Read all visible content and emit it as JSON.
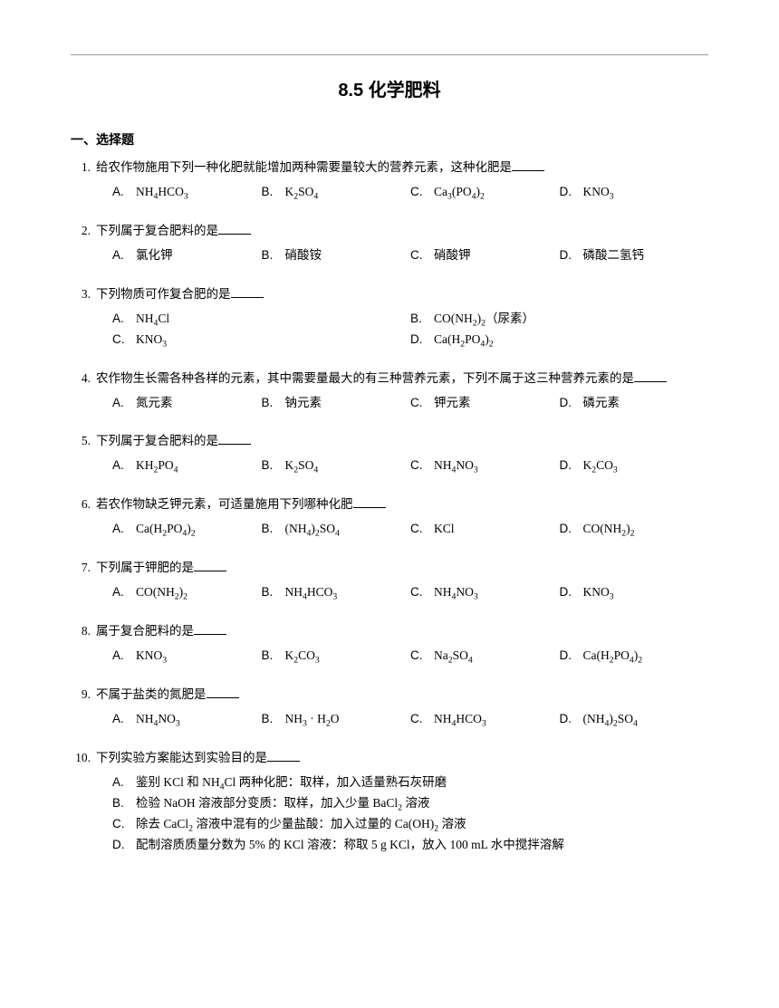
{
  "title": "8.5 化学肥料",
  "section_header": "一、选择题",
  "text_color": "#000000",
  "bg_color": "#ffffff",
  "questions": [
    {
      "num": "1.",
      "stem": "给农作物施用下列一种化肥就能增加两种需要量较大的营养元素，这种化肥是",
      "layout": "opt-4",
      "options": [
        {
          "label": "A.",
          "html": "NH<sub>4</sub>HCO<sub>3</sub>"
        },
        {
          "label": "B.",
          "html": "K<sub>2</sub>SO<sub>4</sub>"
        },
        {
          "label": "C.",
          "html": "Ca<sub>3</sub>(PO<sub>4</sub>)<sub>2</sub>"
        },
        {
          "label": "D.",
          "html": "KNO<sub>3</sub>"
        }
      ]
    },
    {
      "num": "2.",
      "stem": "下列属于复合肥料的是",
      "layout": "opt-4",
      "options": [
        {
          "label": "A.",
          "html": "氯化钾"
        },
        {
          "label": "B.",
          "html": "硝酸铵"
        },
        {
          "label": "C.",
          "html": "硝酸钾"
        },
        {
          "label": "D.",
          "html": "磷酸二氢钙"
        }
      ]
    },
    {
      "num": "3.",
      "stem": "下列物质可作复合肥的是",
      "layout": "opt-2",
      "options": [
        {
          "label": "A.",
          "html": "NH<sub>4</sub>Cl"
        },
        {
          "label": "B.",
          "html": "CO(NH<sub>2</sub>)<sub>2</sub>（尿素）"
        },
        {
          "label": "C.",
          "html": "KNO<sub>3</sub>"
        },
        {
          "label": "D.",
          "html": "Ca(H<sub>2</sub>PO<sub>4</sub>)<sub>2</sub>"
        }
      ]
    },
    {
      "num": "4.",
      "stem": "农作物生长需各种各样的元素，其中需要量最大的有三种营养元素，下列不属于这三种营养元素的是",
      "layout": "opt-4",
      "options": [
        {
          "label": "A.",
          "html": "氮元素"
        },
        {
          "label": "B.",
          "html": "钠元素"
        },
        {
          "label": "C.",
          "html": "钾元素"
        },
        {
          "label": "D.",
          "html": "磷元素"
        }
      ]
    },
    {
      "num": "5.",
      "stem": "下列属于复合肥料的是",
      "layout": "opt-4",
      "options": [
        {
          "label": "A.",
          "html": "KH<sub>2</sub>PO<sub>4</sub>"
        },
        {
          "label": "B.",
          "html": "K<sub>2</sub>SO<sub>4</sub>"
        },
        {
          "label": "C.",
          "html": "NH<sub>4</sub>NO<sub>3</sub>"
        },
        {
          "label": "D.",
          "html": "K<sub>2</sub>CO<sub>3</sub>"
        }
      ]
    },
    {
      "num": "6.",
      "stem": "若农作物缺乏钾元素，可适量施用下列哪种化肥",
      "layout": "opt-4",
      "options": [
        {
          "label": "A.",
          "html": "Ca(H<sub>2</sub>PO<sub>4</sub>)<sub>2</sub>"
        },
        {
          "label": "B.",
          "html": "(NH<sub>4</sub>)<sub>2</sub>SO<sub>4</sub>"
        },
        {
          "label": "C.",
          "html": "KCl"
        },
        {
          "label": "D.",
          "html": "CO(NH<sub>2</sub>)<sub>2</sub>"
        }
      ]
    },
    {
      "num": "7.",
      "stem": "下列属于钾肥的是",
      "layout": "opt-4",
      "options": [
        {
          "label": "A.",
          "html": "CO(NH<sub>2</sub>)<sub>2</sub>"
        },
        {
          "label": "B.",
          "html": "NH<sub>4</sub>HCO<sub>3</sub>"
        },
        {
          "label": "C.",
          "html": "NH<sub>4</sub>NO<sub>3</sub>"
        },
        {
          "label": "D.",
          "html": "KNO<sub>3</sub>"
        }
      ]
    },
    {
      "num": "8.",
      "stem": "属于复合肥料的是",
      "layout": "opt-4",
      "options": [
        {
          "label": "A.",
          "html": "KNO<sub>3</sub>"
        },
        {
          "label": "B.",
          "html": "K<sub>2</sub>CO<sub>3</sub>"
        },
        {
          "label": "C.",
          "html": "Na<sub>2</sub>SO<sub>4</sub>"
        },
        {
          "label": "D.",
          "html": "Ca(H<sub>2</sub>PO<sub>4</sub>)<sub>2</sub>"
        }
      ]
    },
    {
      "num": "9.",
      "stem": "不属于盐类的氮肥是",
      "layout": "opt-4",
      "options": [
        {
          "label": "A.",
          "html": "NH<sub>4</sub>NO<sub>3</sub>"
        },
        {
          "label": "B.",
          "html": "NH<sub>3</sub> · H<sub>2</sub>O"
        },
        {
          "label": "C.",
          "html": "NH<sub>4</sub>HCO<sub>3</sub>"
        },
        {
          "label": "D.",
          "html": "(NH<sub>4</sub>)<sub>2</sub>SO<sub>4</sub>"
        }
      ]
    },
    {
      "num": "10.",
      "stem": "下列实验方案能达到实验目的是",
      "layout": "opt-1",
      "no_blank": true,
      "options": [
        {
          "label": "A.",
          "html": "鉴别 KCl 和 NH<sub>4</sub>Cl 两种化肥：取样，加入适量熟石灰研磨"
        },
        {
          "label": "B.",
          "html": "检验 NaOH 溶液部分变质：取样，加入少量 BaCl<sub>2</sub> 溶液"
        },
        {
          "label": "C.",
          "html": "除去 CaCl<sub>2</sub> 溶液中混有的少量盐酸：加入过量的 Ca(OH)<sub>2</sub> 溶液"
        },
        {
          "label": "D.",
          "html": "配制溶质质量分数为 5% 的 KCl 溶液：称取 5 g KCl，放入 100 mL 水中搅拌溶解"
        }
      ]
    }
  ]
}
